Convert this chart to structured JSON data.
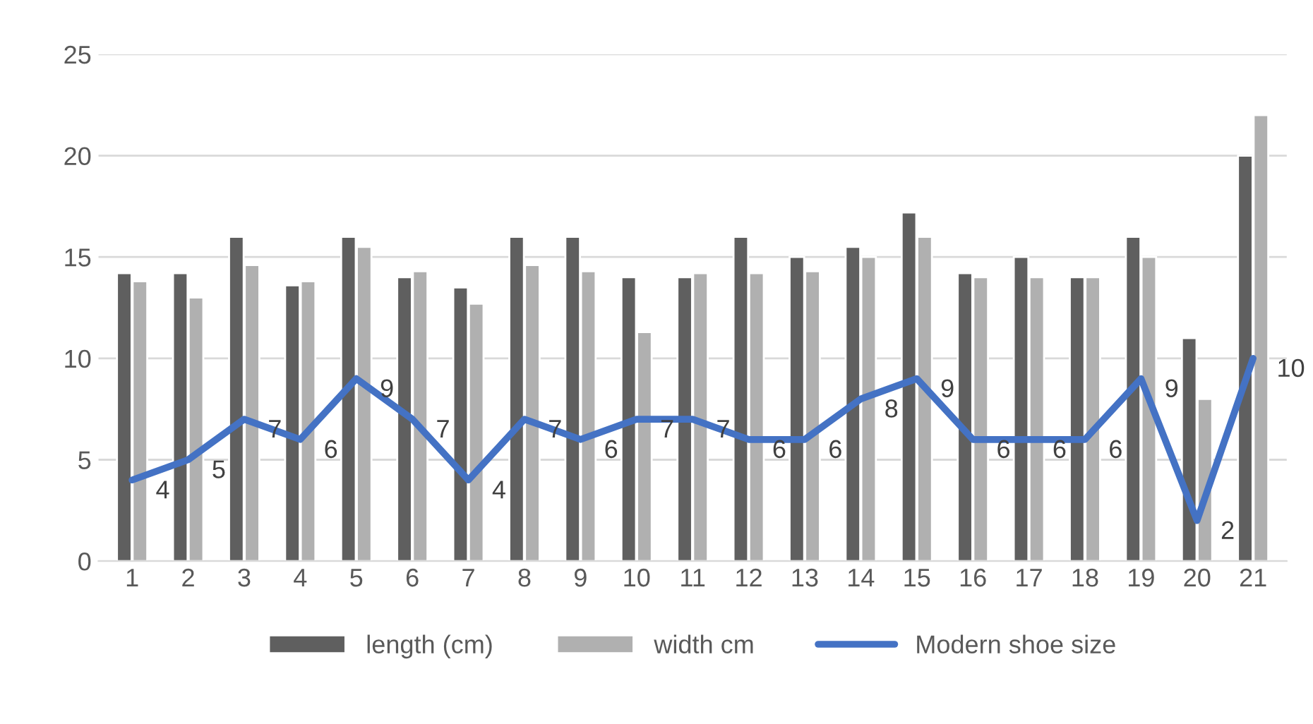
{
  "chart_data": {
    "type": "bar",
    "categories": [
      "1",
      "2",
      "3",
      "4",
      "5",
      "6",
      "7",
      "8",
      "9",
      "10",
      "11",
      "12",
      "13",
      "14",
      "15",
      "16",
      "17",
      "18",
      "19",
      "20",
      "21"
    ],
    "series": [
      {
        "name": "length (cm)",
        "color": "#5f5f5f",
        "values": [
          14.2,
          14.2,
          16,
          13.6,
          16,
          14,
          13.5,
          16,
          16,
          14,
          14,
          16,
          15,
          15.5,
          17.2,
          14.2,
          15,
          14,
          16,
          11,
          20
        ]
      },
      {
        "name": "width cm",
        "color": "#b0b0b0",
        "values": [
          13.8,
          13,
          14.6,
          13.8,
          15.5,
          14.3,
          12.7,
          14.6,
          14.3,
          11.3,
          14.2,
          14.2,
          14.3,
          15,
          16,
          14,
          14,
          14,
          15,
          8,
          22
        ]
      },
      {
        "name": "Modern shoe size",
        "type": "line",
        "color": "#4472c4",
        "values": [
          4,
          5,
          7,
          6,
          9,
          7,
          4,
          7,
          6,
          7,
          7,
          6,
          6,
          8,
          9,
          6,
          6,
          6,
          9,
          2,
          10
        ],
        "value_labels": [
          "4",
          "5",
          "7",
          "6",
          "9",
          "7",
          "4",
          "7",
          "6",
          "7",
          "7",
          "6",
          "6",
          "8",
          "9",
          "6",
          "6",
          "6",
          "9",
          "2",
          "10"
        ]
      }
    ],
    "ylim": [
      0,
      25
    ],
    "yticks": [
      0,
      5,
      10,
      15,
      20,
      25
    ],
    "grid": "y",
    "legend": "bottom"
  }
}
